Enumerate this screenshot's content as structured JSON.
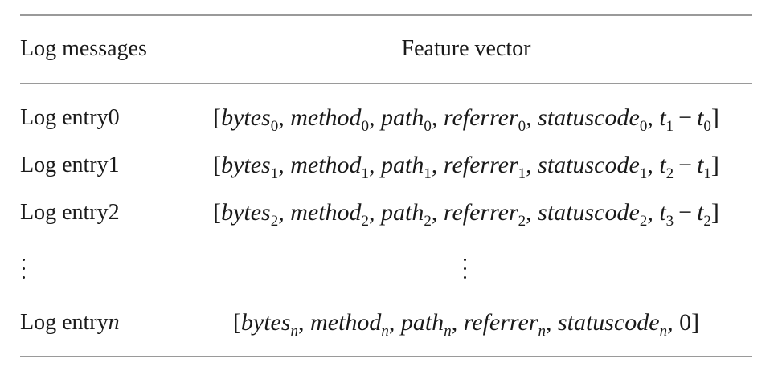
{
  "table": {
    "headers": {
      "log_messages": "Log messages",
      "feature_vector": "Feature vector"
    },
    "rows": [
      {
        "label": "Log entry0",
        "vector": {
          "bytes": "bytes",
          "bytes_sub": "0",
          "method": "method",
          "method_sub": "0",
          "path": "path",
          "path_sub": "0",
          "referrer": "referrer",
          "referrer_sub": "0",
          "statuscode": "statuscode",
          "statuscode_sub": "0",
          "t_a": "t",
          "t_a_sub": "1",
          "minus": "−",
          "t_b": "t",
          "t_b_sub": "0"
        }
      },
      {
        "label": "Log entry1",
        "vector": {
          "bytes": "bytes",
          "bytes_sub": "1",
          "method": "method",
          "method_sub": "1",
          "path": "path",
          "path_sub": "1",
          "referrer": "referrer",
          "referrer_sub": "1",
          "statuscode": "statuscode",
          "statuscode_sub": "1",
          "t_a": "t",
          "t_a_sub": "2",
          "minus": "−",
          "t_b": "t",
          "t_b_sub": "1"
        }
      },
      {
        "label": "Log entry2",
        "vector": {
          "bytes": "bytes",
          "bytes_sub": "2",
          "method": "method",
          "method_sub": "2",
          "path": "path",
          "path_sub": "2",
          "referrer": "referrer",
          "referrer_sub": "2",
          "statuscode": "statuscode",
          "statuscode_sub": "2",
          "t_a": "t",
          "t_a_sub": "3",
          "minus": "−",
          "t_b": "t",
          "t_b_sub": "2"
        }
      }
    ],
    "last_row": {
      "label_prefix": "Log entry",
      "label_var": "n",
      "vector": {
        "bytes": "bytes",
        "bytes_sub": "n",
        "method": "method",
        "method_sub": "n",
        "path": "path",
        "path_sub": "n",
        "referrer": "referrer",
        "referrer_sub": "n",
        "statuscode": "statuscode",
        "statuscode_sub": "n",
        "final": "0"
      }
    }
  }
}
